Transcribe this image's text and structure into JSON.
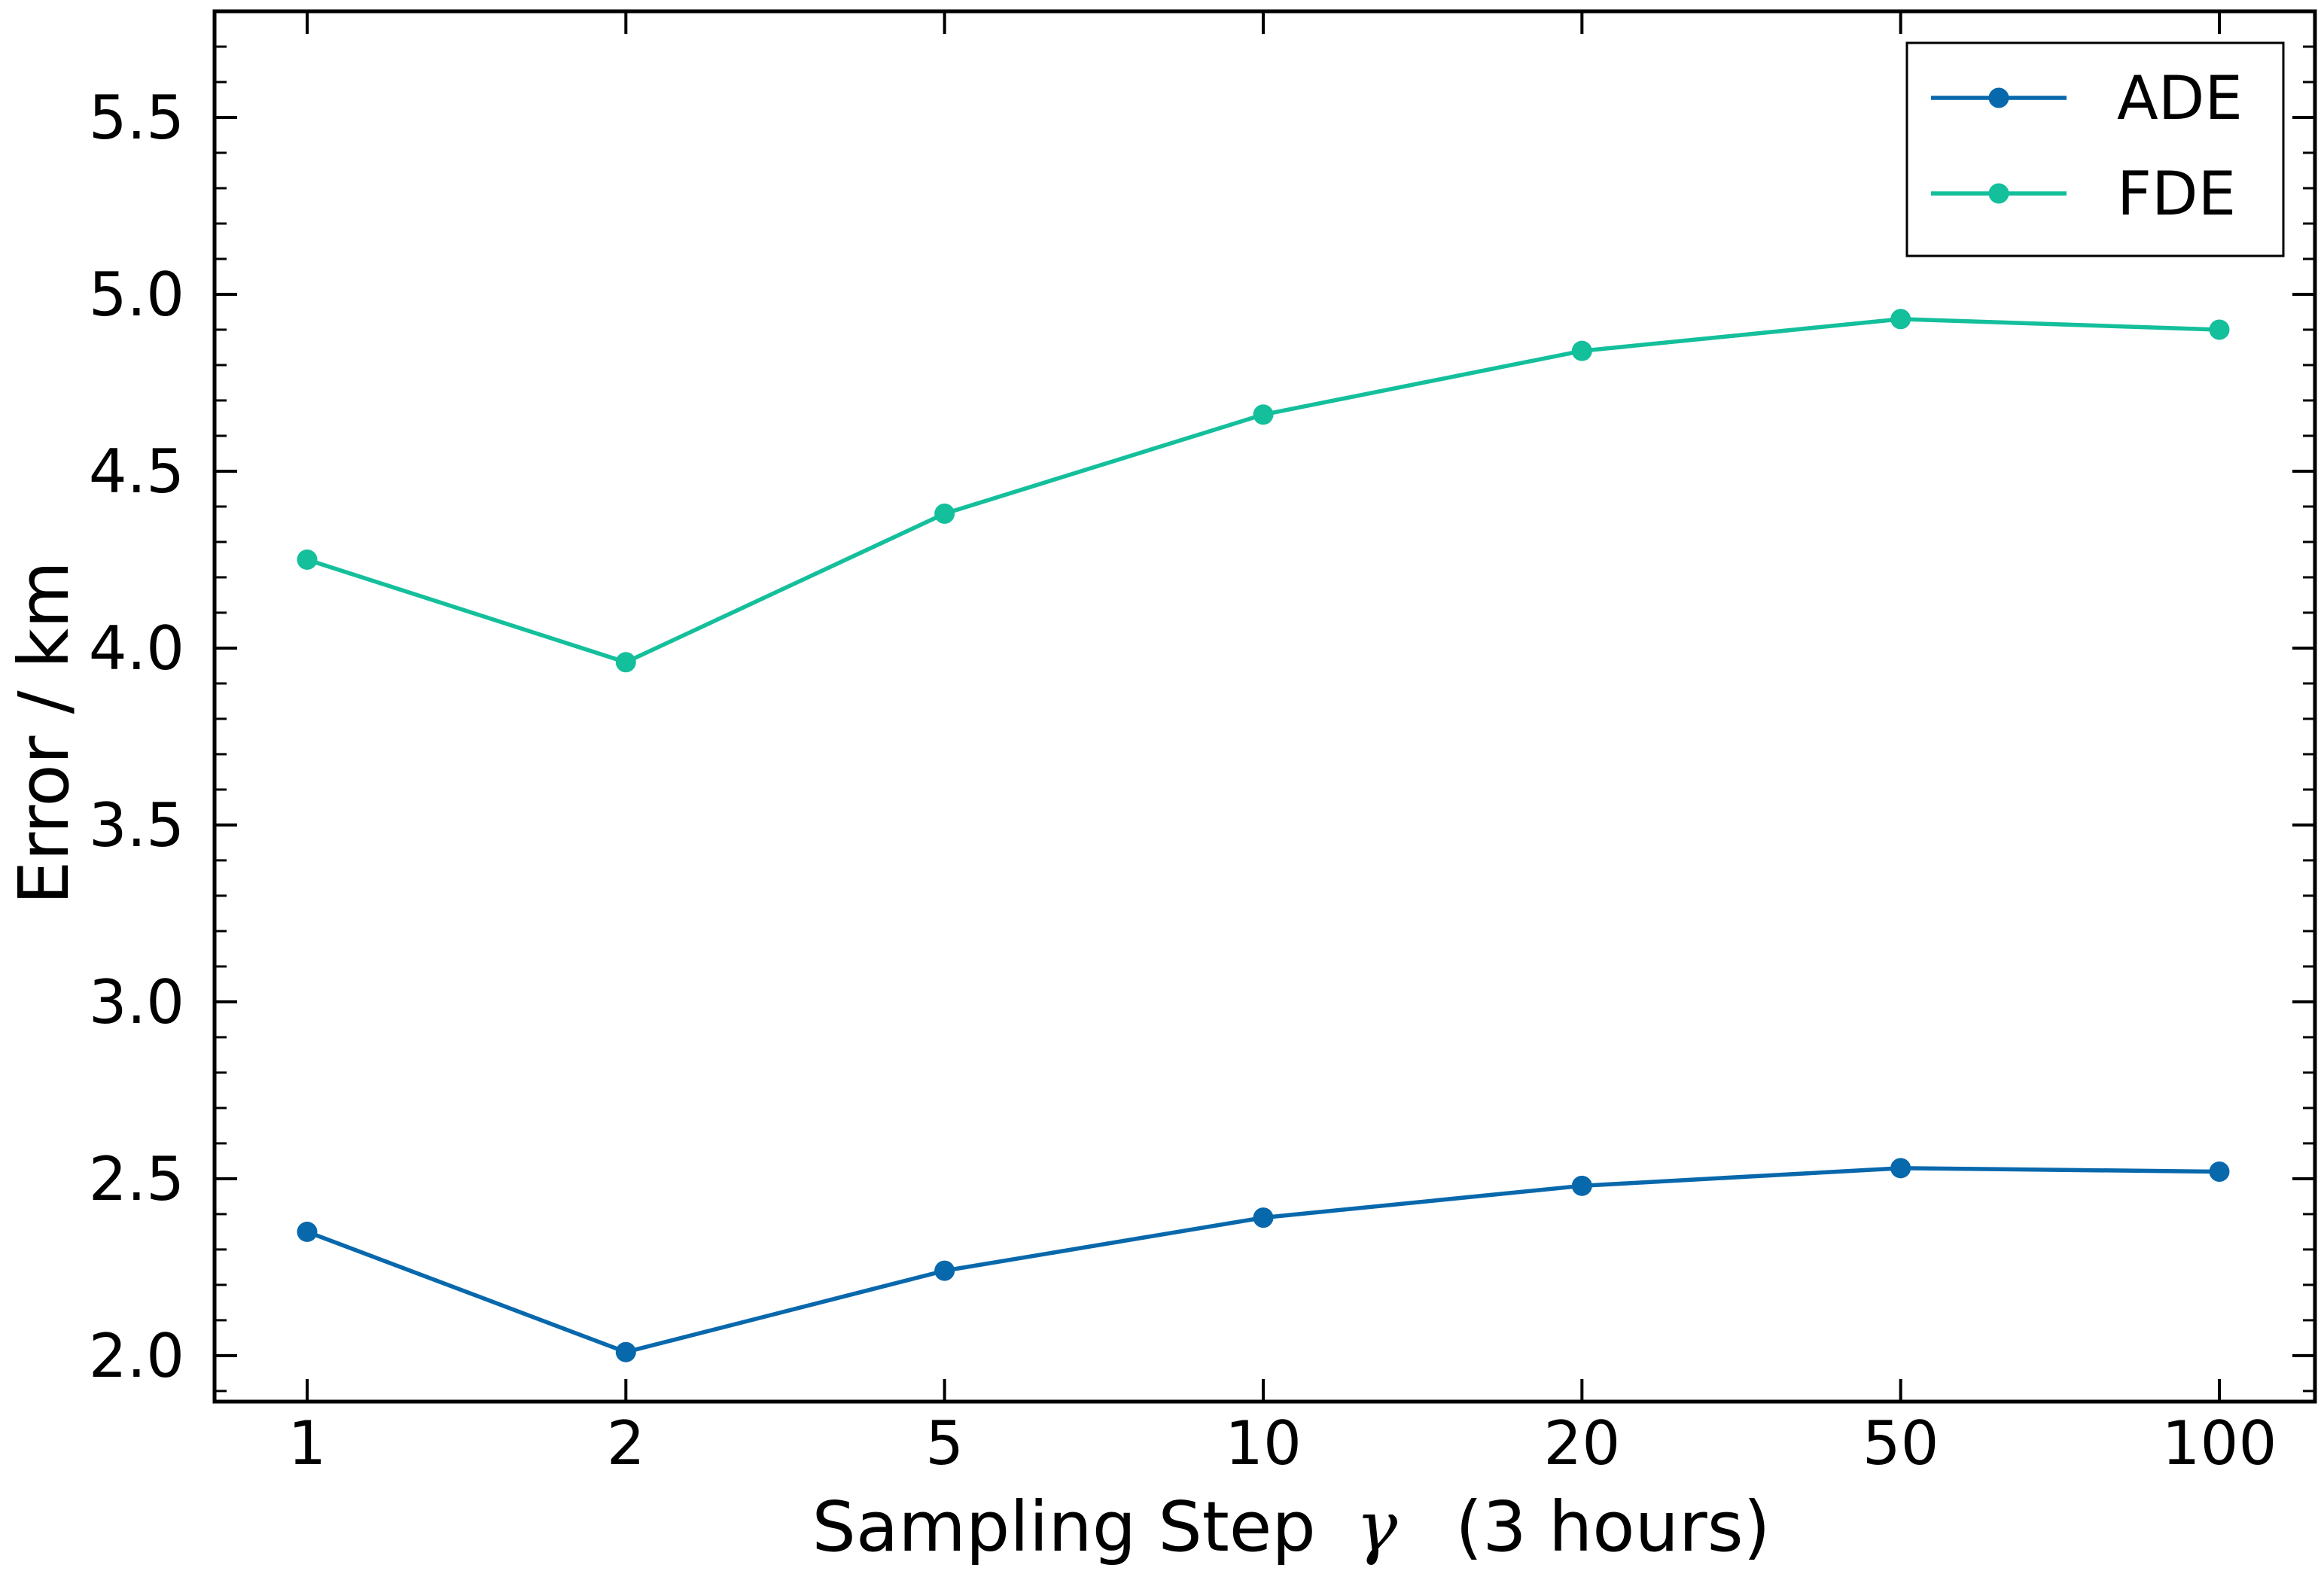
{
  "chart_data": {
    "type": "line",
    "x": [
      1,
      2,
      5,
      10,
      20,
      50,
      100
    ],
    "x_tick_labels": [
      "1",
      "2",
      "5",
      "10",
      "20",
      "50",
      "100"
    ],
    "x_spacing": "categorical",
    "series": [
      {
        "name": "ADE",
        "color": "#0868ac",
        "marker": "circle",
        "values": [
          2.35,
          2.01,
          2.24,
          2.39,
          2.48,
          2.53,
          2.52
        ]
      },
      {
        "name": "FDE",
        "color": "#14bf9b",
        "marker": "circle",
        "values": [
          4.25,
          3.96,
          4.38,
          4.66,
          4.84,
          4.93,
          4.9
        ]
      }
    ],
    "title": "",
    "xlabel": "Sampling Step",
    "xlabel_symbol": "γ",
    "xlabel_suffix": "(3 hours)",
    "ylabel": "Error / km",
    "y_ticks": [
      2.0,
      2.5,
      3.0,
      3.5,
      4.0,
      4.5,
      5.0,
      5.5
    ],
    "y_tick_labels": [
      "2.0",
      "2.5",
      "3.0",
      "3.5",
      "4.0",
      "4.5",
      "5.0",
      "5.5"
    ],
    "ylim": [
      1.87,
      5.8
    ],
    "grid": false,
    "ticks_direction": "in",
    "minor_ticks_y": true,
    "legend_position": "top-right"
  }
}
